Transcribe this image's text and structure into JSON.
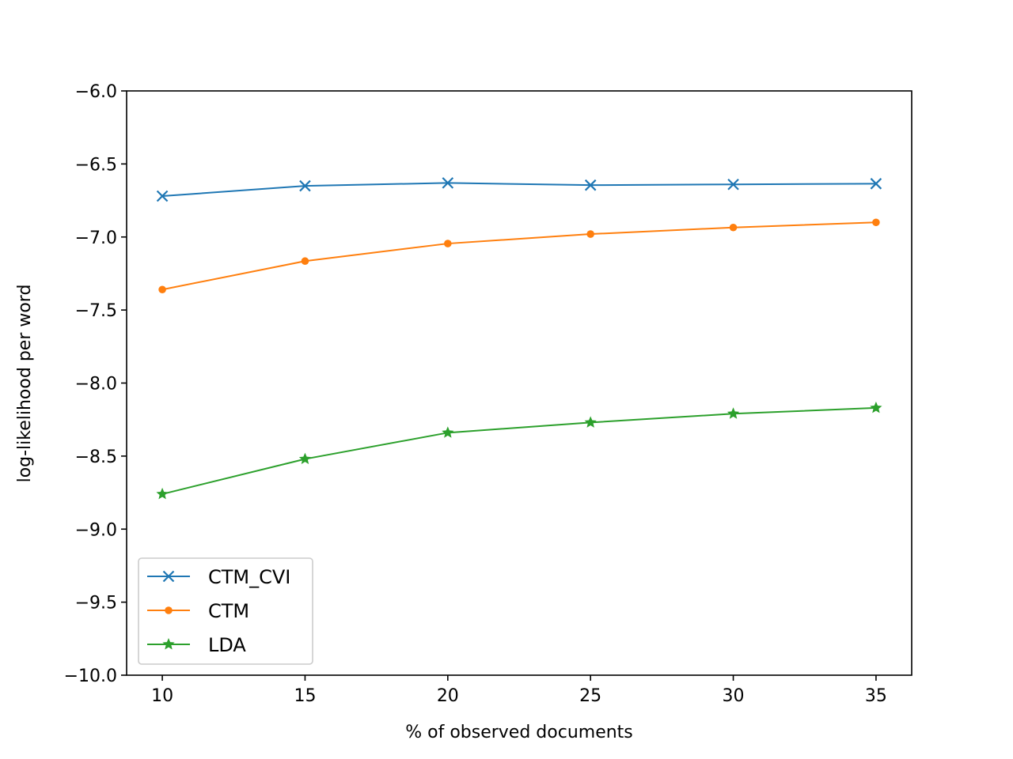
{
  "chart_data": {
    "type": "line",
    "title": "",
    "xlabel": "% of observed documents",
    "ylabel": "log-likelihood per word",
    "x": [
      10,
      15,
      20,
      25,
      30,
      35
    ],
    "xlim": [
      8.75,
      36.25
    ],
    "ylim": [
      -10.0,
      -6.0
    ],
    "xticks": [
      10,
      15,
      20,
      25,
      30,
      35
    ],
    "yticks": [
      -6.0,
      -6.5,
      -7.0,
      -7.5,
      -8.0,
      -8.5,
      -9.0,
      -9.5,
      -10.0
    ],
    "xtick_labels": [
      "10",
      "15",
      "20",
      "25",
      "30",
      "35"
    ],
    "ytick_labels": [
      "−6.0",
      "−6.5",
      "−7.0",
      "−7.5",
      "−8.0",
      "−8.5",
      "−9.0",
      "−9.5",
      "−10.0"
    ],
    "grid": false,
    "legend_position": "lower-left",
    "series": [
      {
        "name": "CTM_CVI",
        "marker": "x",
        "color": "#1f77b4",
        "values": [
          -6.72,
          -6.65,
          -6.63,
          -6.645,
          -6.64,
          -6.635
        ]
      },
      {
        "name": "CTM",
        "marker": "circle",
        "color": "#ff7f0e",
        "values": [
          -7.36,
          -7.165,
          -7.045,
          -6.98,
          -6.935,
          -6.9
        ]
      },
      {
        "name": "LDA",
        "marker": "star",
        "color": "#2ca02c",
        "values": [
          -8.76,
          -8.52,
          -8.34,
          -8.27,
          -8.21,
          -8.17
        ]
      }
    ]
  }
}
